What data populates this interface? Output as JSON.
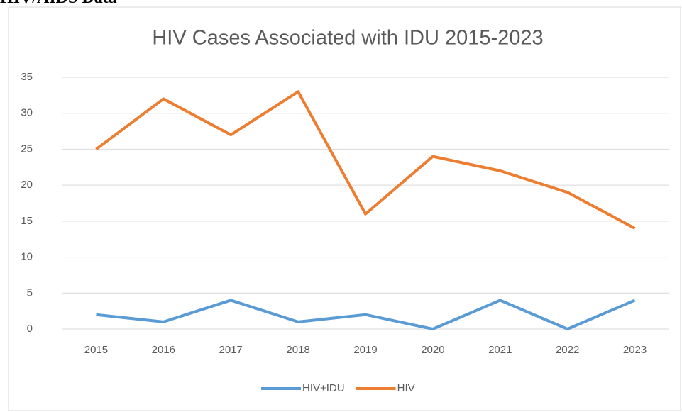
{
  "heading": "HIV/AIDS Data",
  "chart_data": {
    "type": "line",
    "title": "HIV Cases Associated with IDU 2015-2023",
    "categories": [
      "2015",
      "2016",
      "2017",
      "2018",
      "2019",
      "2020",
      "2021",
      "2022",
      "2023"
    ],
    "series": [
      {
        "name": "HIV+IDU",
        "color": "#5b9bd5",
        "values": [
          2,
          1,
          4,
          1,
          2,
          0,
          4,
          0,
          4
        ]
      },
      {
        "name": "HIV",
        "color": "#ed7d31",
        "values": [
          25,
          32,
          27,
          33,
          16,
          24,
          22,
          19,
          14
        ]
      }
    ],
    "ylim": [
      0,
      35
    ],
    "yticks": [
      0,
      5,
      10,
      15,
      20,
      25,
      30,
      35
    ],
    "grid": true,
    "legend": "bottom"
  }
}
